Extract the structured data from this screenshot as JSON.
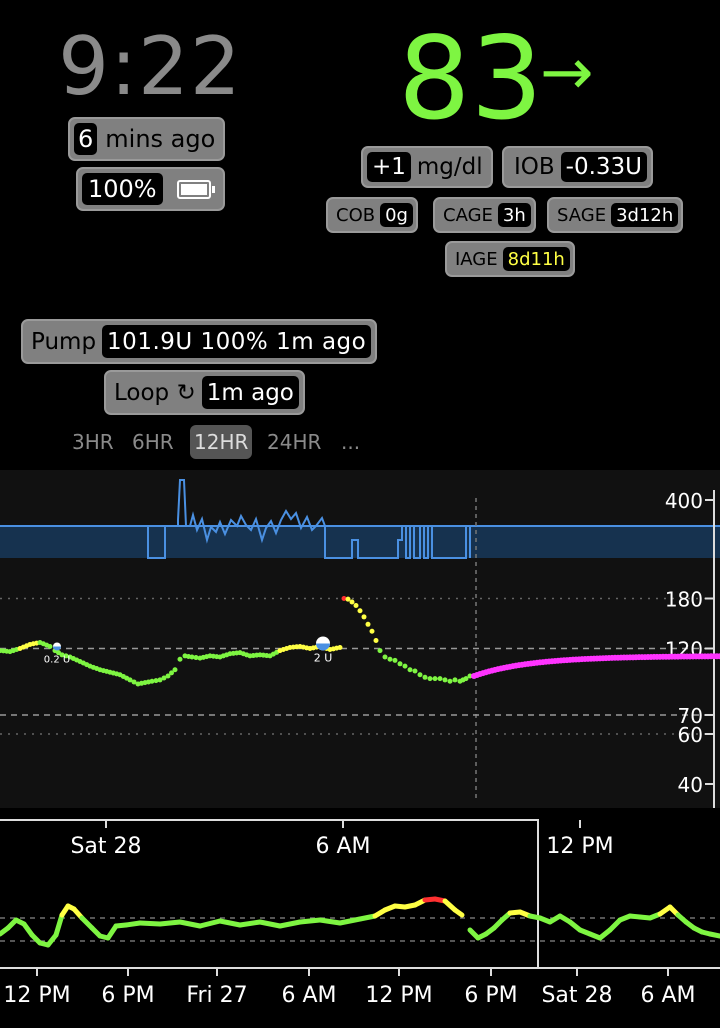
{
  "header": {
    "clock": "9:22",
    "bg_value": "83",
    "trend_arrow": "→",
    "time_ago": {
      "value": "6",
      "label": "mins ago"
    },
    "battery": {
      "value": "100%"
    },
    "delta": {
      "value": "+1",
      "unit": "mg/dl"
    },
    "iob": {
      "label": "IOB",
      "value": "-0.33U"
    },
    "cob": {
      "label": "COB",
      "value": "0g"
    },
    "cage": {
      "label": "CAGE",
      "value": "3h"
    },
    "sage": {
      "label": "SAGE",
      "value": "3d12h"
    },
    "iage": {
      "label": "IAGE",
      "value": "8d11h"
    },
    "pump": {
      "label": "Pump",
      "value": "101.9U 100% 1m ago"
    },
    "loop": {
      "label": "Loop ↻",
      "value": "1m ago"
    }
  },
  "ranges": [
    "3HR",
    "6HR",
    "12HR",
    "24HR",
    "..."
  ],
  "active_range": "12HR",
  "colors": {
    "in_range": "#7ef542",
    "high": "#ffff44",
    "very_high": "#ff3030",
    "prediction": "#ff33ff",
    "basal": "#4a90e2"
  },
  "chart_data": {
    "type": "scatter",
    "y_ticks": [
      "400",
      "180",
      "120",
      "70",
      "60",
      "40"
    ],
    "y_axis_scale": "log",
    "ylim": [
      39,
      400
    ],
    "target_low": 70,
    "target_high": 180,
    "boluses": [
      {
        "label": "0.2 U",
        "value": 0.2
      },
      {
        "label": "2 U",
        "value": 2
      }
    ],
    "nav_ticks": [
      "Sat 28",
      "6 AM",
      "12 PM"
    ],
    "overview_ticks": [
      "12 PM",
      "6 PM",
      "Fri 27",
      "6 AM",
      "12 PM",
      "6 PM",
      "Sat 28",
      "6 AM"
    ]
  }
}
